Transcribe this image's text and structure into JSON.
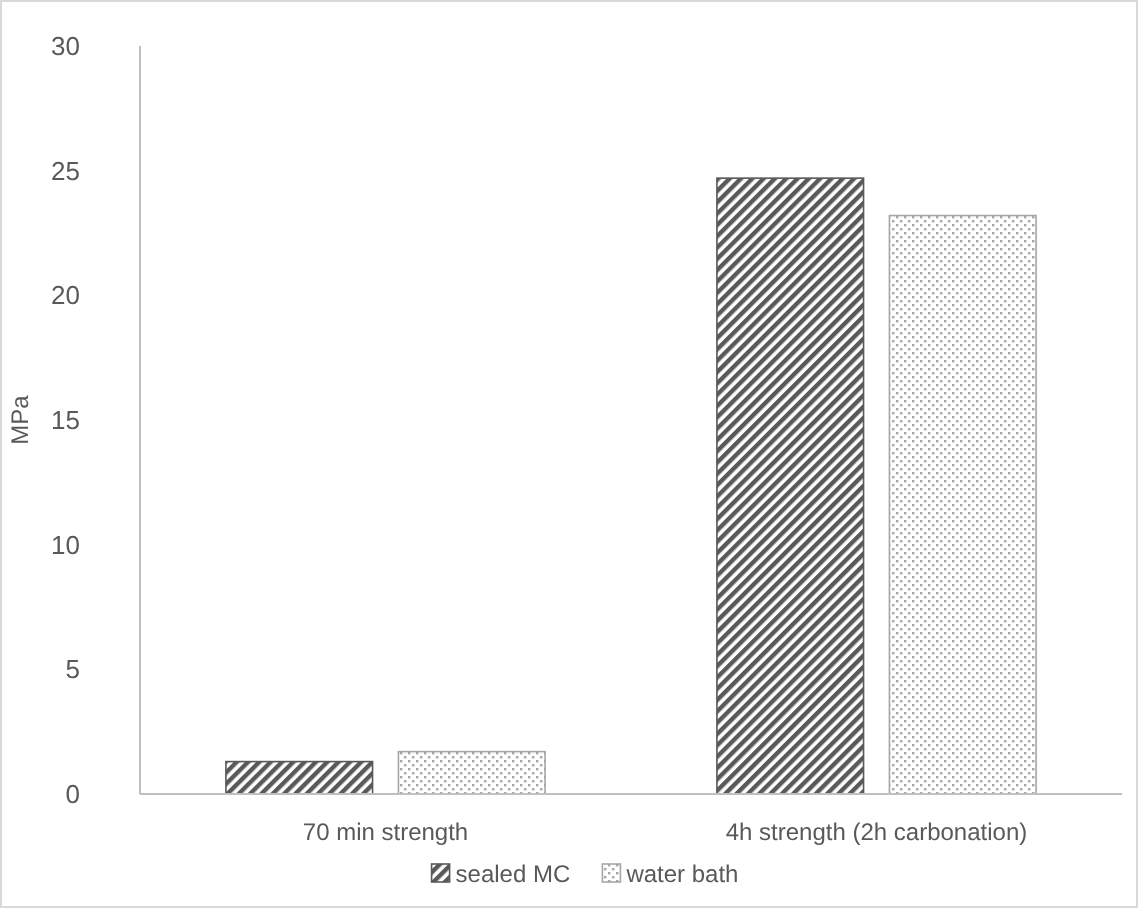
{
  "chart_data": {
    "type": "bar",
    "ylabel": "MPa",
    "categories": [
      "70 min strength",
      "4h strength (2h carbonation)"
    ],
    "series": [
      {
        "name": "sealed MC",
        "color": "#595959",
        "values": [
          1.3,
          24.7
        ]
      },
      {
        "name": "water bath",
        "color": "#a6a6a6",
        "values": [
          1.7,
          23.2
        ]
      }
    ],
    "ylim": [
      0,
      30
    ],
    "yticks": [
      0,
      5,
      10,
      15,
      20,
      25,
      30
    ],
    "grid": false,
    "legend": "bottom"
  }
}
